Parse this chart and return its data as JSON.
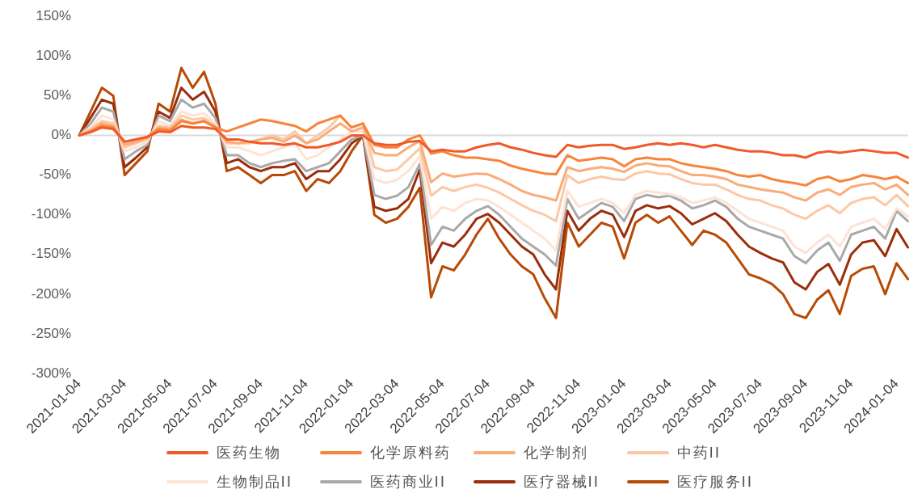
{
  "chart_data": {
    "type": "line",
    "categories": [
      "2021-01-04",
      null,
      null,
      null,
      "2021-03-04",
      null,
      null,
      null,
      "2021-05-04",
      null,
      null,
      null,
      "2021-07-04",
      null,
      null,
      null,
      "2021-09-04",
      null,
      null,
      null,
      "2021-11-04",
      null,
      null,
      null,
      "2022-01-04",
      null,
      null,
      null,
      "2022-03-04",
      null,
      null,
      null,
      "2022-05-04",
      null,
      null,
      null,
      "2022-07-04",
      null,
      null,
      null,
      "2022-09-04",
      null,
      null,
      null,
      "2022-11-04",
      null,
      null,
      null,
      "2023-01-04",
      null,
      null,
      null,
      "2023-03-04",
      null,
      null,
      null,
      "2023-05-04",
      null,
      null,
      null,
      "2023-07-04",
      null,
      null,
      null,
      "2023-09-04",
      null,
      null,
      null,
      "2023-11-04",
      null,
      null,
      null,
      "2024-01-04",
      null
    ],
    "ylim": [
      -300,
      150
    ],
    "yticks": [
      {
        "value": -300,
        "label": "-300%"
      },
      {
        "value": -250,
        "label": "-250%"
      },
      {
        "value": -200,
        "label": "-200%"
      },
      {
        "value": -150,
        "label": "-150%"
      },
      {
        "value": -100,
        "label": "-100%"
      },
      {
        "value": -50,
        "label": "-50%"
      },
      {
        "value": 0,
        "label": "0%"
      },
      {
        "value": 50,
        "label": "50%"
      },
      {
        "value": 100,
        "label": "100%"
      },
      {
        "value": 150,
        "label": "150%"
      }
    ],
    "grid": false,
    "legend": "bottom",
    "ref_lines": [
      {
        "axis": "y",
        "value": 0,
        "color": "#d9d9d9"
      }
    ],
    "series": [
      {
        "name": "医药生物",
        "color": "#f05a28",
        "values": [
          0,
          4,
          10,
          8,
          -8,
          -5,
          -2,
          5,
          4,
          12,
          10,
          10,
          8,
          -5,
          -5,
          -8,
          -10,
          -10,
          -12,
          -10,
          -15,
          -15,
          -12,
          -8,
          0,
          0,
          -10,
          -12,
          -12,
          -8,
          -7,
          -20,
          -18,
          -20,
          -20,
          -15,
          -12,
          -10,
          -15,
          -18,
          -22,
          -25,
          -27,
          -12,
          -15,
          -13,
          -12,
          -12,
          -17,
          -15,
          -12,
          -10,
          -12,
          -10,
          -12,
          -15,
          -12,
          -15,
          -18,
          -20,
          -20,
          -22,
          -25,
          -25,
          -28,
          -22,
          -20,
          -22,
          -20,
          -18,
          -20,
          -22,
          -22,
          -28
        ]
      },
      {
        "name": "化学原料药",
        "color": "#f8843a",
        "values": [
          0,
          5,
          12,
          10,
          -8,
          -5,
          -2,
          8,
          6,
          18,
          15,
          18,
          10,
          5,
          10,
          15,
          20,
          18,
          15,
          12,
          5,
          15,
          20,
          25,
          10,
          15,
          -12,
          -15,
          -15,
          -5,
          0,
          -23,
          -20,
          -25,
          -28,
          -28,
          -30,
          -32,
          -38,
          -42,
          -45,
          -48,
          -49,
          -25,
          -32,
          -30,
          -28,
          -30,
          -39,
          -30,
          -28,
          -30,
          -30,
          -35,
          -38,
          -40,
          -42,
          -45,
          -50,
          -52,
          -50,
          -55,
          -58,
          -60,
          -63,
          -55,
          -52,
          -58,
          -55,
          -50,
          -52,
          -55,
          -52,
          -60
        ]
      },
      {
        "name": "化学制剂",
        "color": "#fbab7a",
        "values": [
          0,
          6,
          15,
          12,
          -12,
          -8,
          -3,
          10,
          8,
          20,
          15,
          18,
          10,
          -8,
          -10,
          -8,
          -5,
          -3,
          -8,
          0,
          -10,
          -5,
          5,
          15,
          5,
          10,
          -22,
          -25,
          -25,
          -15,
          -7,
          -59,
          -48,
          -52,
          -50,
          -48,
          -49,
          -55,
          -62,
          -70,
          -75,
          -78,
          -82,
          -40,
          -45,
          -42,
          -40,
          -42,
          -46,
          -38,
          -35,
          -38,
          -39,
          -45,
          -50,
          -50,
          -52,
          -55,
          -62,
          -65,
          -68,
          -70,
          -72,
          -78,
          -82,
          -72,
          -68,
          -75,
          -65,
          -62,
          -60,
          -68,
          -62,
          -75
        ]
      },
      {
        "name": "中药II",
        "color": "#fcc8a6",
        "values": [
          0,
          8,
          18,
          15,
          -15,
          -10,
          -5,
          12,
          10,
          25,
          20,
          22,
          12,
          -10,
          -10,
          -10,
          -5,
          0,
          -5,
          5,
          -10,
          0,
          10,
          25,
          10,
          15,
          -40,
          -45,
          -43,
          -30,
          -16,
          -76,
          -65,
          -70,
          -65,
          -62,
          -66,
          -72,
          -80,
          -88,
          -95,
          -100,
          -108,
          -50,
          -60,
          -55,
          -52,
          -55,
          -56,
          -48,
          -45,
          -48,
          -49,
          -55,
          -60,
          -62,
          -62,
          -68,
          -75,
          -80,
          -82,
          -88,
          -92,
          -100,
          -105,
          -95,
          -88,
          -98,
          -85,
          -80,
          -78,
          -88,
          -75,
          -89
        ]
      },
      {
        "name": "生物制品II",
        "color": "#fde3d5",
        "values": [
          0,
          10,
          25,
          20,
          -20,
          -15,
          -8,
          18,
          12,
          30,
          25,
          28,
          15,
          -15,
          -15,
          -20,
          -25,
          -20,
          -15,
          -10,
          -30,
          -25,
          -15,
          -5,
          5,
          5,
          -55,
          -60,
          -56,
          -45,
          -26,
          -105,
          -90,
          -95,
          -85,
          -80,
          -82,
          -90,
          -100,
          -110,
          -120,
          -130,
          -145,
          -70,
          -90,
          -85,
          -80,
          -85,
          -98,
          -75,
          -70,
          -72,
          -74,
          -78,
          -85,
          -82,
          -78,
          -85,
          -95,
          -105,
          -110,
          -115,
          -120,
          -140,
          -148,
          -135,
          -125,
          -140,
          -115,
          -110,
          -105,
          -118,
          -92,
          -102
        ]
      },
      {
        "name": "医药商业II",
        "color": "#a9a9a9",
        "values": [
          0,
          15,
          35,
          30,
          -30,
          -20,
          -12,
          25,
          18,
          45,
          35,
          40,
          22,
          -25,
          -25,
          -35,
          -40,
          -35,
          -32,
          -30,
          -45,
          -40,
          -35,
          -20,
          -5,
          0,
          -75,
          -80,
          -76,
          -65,
          -36,
          -138,
          -115,
          -120,
          -105,
          -95,
          -89,
          -100,
          -115,
          -130,
          -140,
          -150,
          -164,
          -80,
          -105,
          -95,
          -85,
          -90,
          -108,
          -80,
          -75,
          -78,
          -76,
          -82,
          -92,
          -88,
          -82,
          -90,
          -105,
          -115,
          -120,
          -125,
          -130,
          -152,
          -161,
          -145,
          -135,
          -158,
          -125,
          -120,
          -115,
          -130,
          -95,
          -108
        ]
      },
      {
        "name": "医疗器械II",
        "color": "#9a2e0c",
        "values": [
          0,
          22,
          45,
          40,
          -40,
          -28,
          -15,
          30,
          22,
          60,
          45,
          55,
          30,
          -35,
          -30,
          -40,
          -45,
          -40,
          -40,
          -35,
          -55,
          -45,
          -45,
          -30,
          -10,
          0,
          -90,
          -95,
          -92,
          -80,
          -43,
          -161,
          -135,
          -140,
          -125,
          -105,
          -99,
          -110,
          -125,
          -140,
          -150,
          -175,
          -194,
          -95,
          -120,
          -105,
          -95,
          -100,
          -128,
          -95,
          -88,
          -92,
          -89,
          -98,
          -112,
          -105,
          -98,
          -108,
          -125,
          -140,
          -148,
          -155,
          -160,
          -185,
          -194,
          -172,
          -162,
          -188,
          -150,
          -135,
          -132,
          -152,
          -118,
          -141
        ]
      },
      {
        "name": "医疗服务II",
        "color": "#b84a06",
        "values": [
          0,
          30,
          60,
          50,
          -50,
          -35,
          -20,
          40,
          30,
          85,
          60,
          80,
          40,
          -45,
          -40,
          -50,
          -60,
          -50,
          -50,
          -45,
          -70,
          -55,
          -60,
          -45,
          -20,
          0,
          -100,
          -110,
          -105,
          -90,
          -66,
          -204,
          -165,
          -170,
          -150,
          -125,
          -105,
          -130,
          -150,
          -165,
          -175,
          -205,
          -230,
          -110,
          -140,
          -125,
          -110,
          -115,
          -155,
          -110,
          -100,
          -110,
          -102,
          -120,
          -138,
          -120,
          -125,
          -135,
          -155,
          -175,
          -180,
          -187,
          -200,
          -225,
          -230,
          -207,
          -195,
          -225,
          -177,
          -168,
          -165,
          -200,
          -161,
          -181
        ]
      }
    ]
  }
}
